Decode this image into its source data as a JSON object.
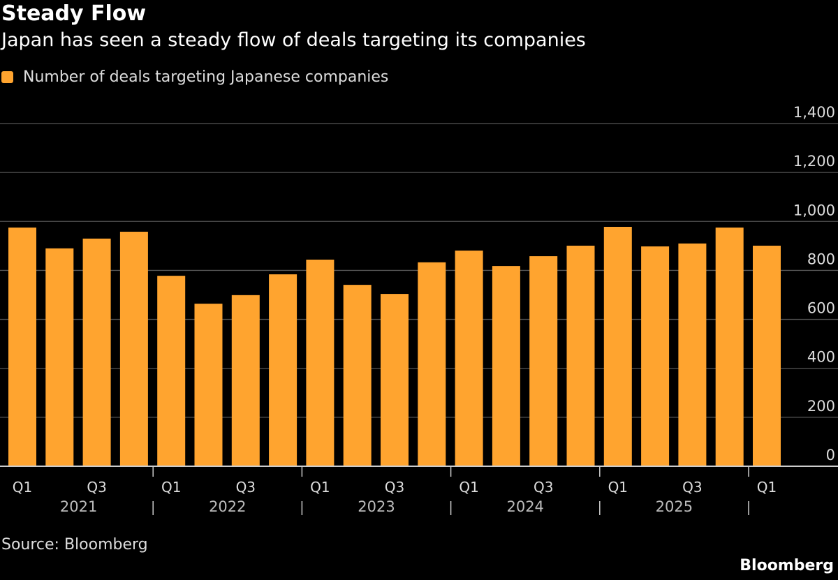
{
  "chart_data": {
    "type": "bar",
    "title": "Steady Flow",
    "subtitle": "Japan has seen a steady flow of deals targeting its companies",
    "categories": [
      "Q1 2021",
      "Q2 2021",
      "Q3 2021",
      "Q4 2021",
      "Q1 2022",
      "Q2 2022",
      "Q3 2022",
      "Q4 2022",
      "Q1 2023",
      "Q2 2023",
      "Q3 2023",
      "Q4 2023",
      "Q1 2024",
      "Q2 2024",
      "Q3 2024",
      "Q4 2024",
      "Q1 2025",
      "Q2 2025",
      "Q3 2025",
      "Q4 2025",
      "Q1 2026"
    ],
    "x_tick_labels": [
      "Q1",
      "",
      "Q3",
      "",
      "Q1",
      "",
      "Q3",
      "",
      "Q1",
      "",
      "Q3",
      "",
      "Q1",
      "",
      "Q3",
      "",
      "Q1",
      "",
      "Q3",
      "",
      "Q1"
    ],
    "year_labels": [
      "2021",
      "2022",
      "2023",
      "2024",
      "2025"
    ],
    "series": [
      {
        "name": "Number of deals targeting Japanese companies",
        "color": "#ffa42f",
        "values": [
          975,
          890,
          930,
          958,
          778,
          664,
          699,
          784,
          844,
          741,
          704,
          833,
          881,
          818,
          858,
          901,
          978,
          898,
          910,
          975,
          901
        ]
      }
    ],
    "ylim": [
      0,
      1400
    ],
    "y_ticks": [
      0,
      200,
      400,
      600,
      800,
      1000,
      1200,
      1400
    ],
    "y_tick_labels": [
      "0",
      "200",
      "400",
      "600",
      "800",
      "1,000",
      "1,200",
      "1,400"
    ],
    "y_axis_position": "right",
    "grid": true,
    "legend_position": "top-left",
    "source": "Source: Bloomberg",
    "brand": "Bloomberg"
  }
}
